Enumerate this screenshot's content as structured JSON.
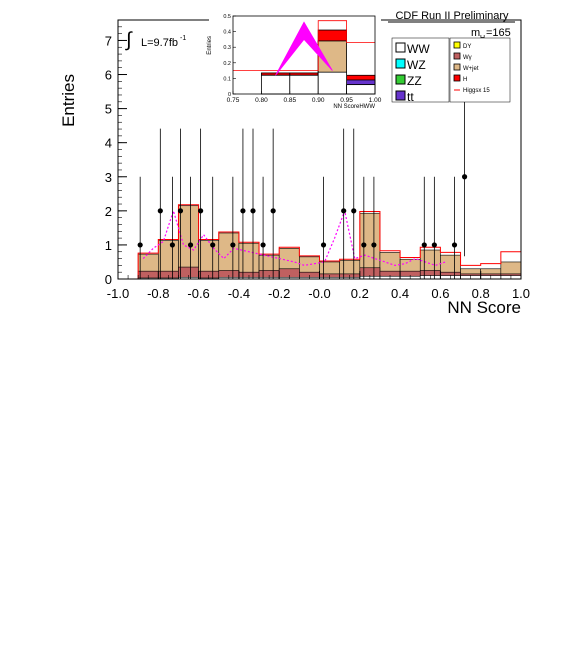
{
  "chart_data": {
    "type": "bar",
    "title": "CDF Run II Preliminary",
    "xlabel": "NN Score",
    "ylabel": "Entries",
    "xlim": [
      -1.0,
      1.0
    ],
    "ylim": [
      0,
      7.6
    ],
    "xticks": [
      "-1.0",
      "-0.8",
      "-0.6",
      "-0.4",
      "-0.2",
      "-0.0",
      "0.2",
      "0.4",
      "0.6",
      "0.8",
      "1.0"
    ],
    "yticks": [
      "0",
      "1",
      "2",
      "3",
      "4",
      "5",
      "6",
      "7"
    ],
    "luminosity_label": "L=9.7fb",
    "luminosity_exponent": "-1",
    "mass_label_main": "m",
    "mass_label_sub": "H",
    "mass_label_value": "=165",
    "bin_edges": [
      -1.0,
      -0.9,
      -0.8,
      -0.7,
      -0.6,
      -0.5,
      -0.4,
      -0.3,
      -0.2,
      -0.1,
      0.0,
      0.1,
      0.2,
      0.3,
      0.4,
      0.5,
      0.6,
      0.7,
      0.8,
      0.9,
      1.0
    ],
    "series": [
      {
        "name": "W+jet",
        "color": "#deb887",
        "values": [
          0.0,
          0.5,
          0.9,
          1.8,
          0.9,
          1.1,
          0.85,
          0.45,
          0.6,
          0.45,
          0.35,
          0.4,
          1.6,
          0.55,
          0.35,
          0.6,
          0.5,
          0.15,
          0.15,
          0.35
        ]
      },
      {
        "name": "Wγ",
        "color": "#c06060",
        "values": [
          0.0,
          0.2,
          0.2,
          0.3,
          0.2,
          0.2,
          0.15,
          0.2,
          0.25,
          0.15,
          0.1,
          0.1,
          0.25,
          0.15,
          0.15,
          0.15,
          0.1,
          0.05,
          0.05,
          0.05
        ]
      },
      {
        "name": "WW",
        "color": "#ffffff",
        "values": [
          0.0,
          0.03,
          0.03,
          0.05,
          0.03,
          0.05,
          0.05,
          0.05,
          0.05,
          0.05,
          0.05,
          0.05,
          0.08,
          0.08,
          0.08,
          0.1,
          0.1,
          0.1,
          0.1,
          0.1
        ]
      }
    ],
    "higgs_line": {
      "name": "Higgsx 15",
      "values": [
        0.0,
        0.03,
        0.03,
        0.03,
        0.03,
        0.03,
        0.03,
        0.03,
        0.03,
        0.03,
        0.03,
        0.03,
        0.05,
        0.05,
        0.05,
        0.08,
        0.08,
        0.1,
        0.15,
        0.3
      ]
    },
    "band": {
      "x": [
        -0.875,
        -0.825,
        -0.775,
        -0.725,
        -0.675,
        -0.625,
        -0.575,
        -0.525,
        -0.475,
        -0.425,
        -0.125,
        -0.075,
        0.025,
        0.075,
        0.125,
        0.175,
        0.225,
        0.275,
        0.325,
        0.375,
        0.425,
        0.475,
        0.525,
        0.575,
        0.625
      ],
      "values": [
        0.6,
        0.9,
        1.1,
        2.0,
        1.0,
        0.85,
        1.3,
        0.9,
        0.6,
        0.9,
        0.5,
        0.4,
        0.5,
        1.2,
        2.0,
        0.6,
        0.7,
        0.6,
        0.5,
        0.4,
        0.45,
        0.6,
        0.5,
        0.4,
        0.5
      ]
    },
    "data_points": {
      "x": [
        -0.89,
        -0.79,
        -0.73,
        -0.69,
        -0.64,
        -0.59,
        -0.53,
        -0.43,
        -0.38,
        -0.33,
        -0.28,
        -0.23,
        0.02,
        0.12,
        0.17,
        0.22,
        0.27,
        0.52,
        0.57,
        0.67,
        0.72
      ],
      "values": [
        1,
        2,
        1,
        2,
        1,
        2,
        1,
        1,
        2,
        2,
        1,
        2,
        1,
        2,
        2,
        1,
        1,
        1,
        1,
        1,
        3
      ]
    },
    "legend": [
      {
        "name": "WW",
        "color": "#ffffff",
        "column": 0
      },
      {
        "name": "WZ",
        "color": "#00ffff",
        "column": 0
      },
      {
        "name": "ZZ",
        "color": "#33cc33",
        "column": 0
      },
      {
        "name": "tt",
        "color": "#6633cc",
        "column": 0
      },
      {
        "name": "DY",
        "color": "#ffff00",
        "column": 1
      },
      {
        "name": "Wγ",
        "color": "#c06060",
        "column": 1
      },
      {
        "name": "W+jet",
        "color": "#deb887",
        "column": 1
      },
      {
        "name": "H",
        "color": "#ff0000",
        "column": 1
      },
      {
        "name": "Higgsx 15",
        "color": "#ff0000",
        "column": 1,
        "line": true
      }
    ],
    "legend_placement": "top-right",
    "inset": {
      "xlabel": "NN ScoreHWW",
      "ylabel": "Entries",
      "xlim": [
        0.75,
        1.0
      ],
      "ylim": [
        0,
        0.5
      ],
      "xticks": [
        "0.75",
        "0.80",
        "0.85",
        "0.90",
        "0.95",
        "1.00"
      ],
      "yticks": [
        "0",
        "0.1",
        "0.2",
        "0.3",
        "0.4",
        "0.5"
      ],
      "bin_edges": [
        0.75,
        0.8,
        0.85,
        0.9,
        0.95,
        1.0
      ],
      "stacks": [
        {
          "name": "WW",
          "color": "#ffffff",
          "values": [
            0.0,
            0.12,
            0.12,
            0.14,
            0.06
          ]
        },
        {
          "name": "W+jet",
          "color": "#deb887",
          "values": [
            0.0,
            0.0,
            0.0,
            0.2,
            0.0
          ]
        },
        {
          "name": "tt",
          "color": "#6633cc",
          "values": [
            0.0,
            0.0,
            0.0,
            0.0,
            0.03
          ]
        },
        {
          "name": "H",
          "color": "#ff0000",
          "values": [
            0.0,
            0.015,
            0.015,
            0.07,
            0.03
          ]
        }
      ],
      "higgs_line": [
        0.15,
        0.15,
        0.15,
        0.47,
        0.33
      ],
      "band_x": [
        0.825,
        0.875,
        0.925
      ],
      "band_low": [
        0.12,
        0.35,
        0.15
      ],
      "band_high": [
        0.12,
        0.46,
        0.15
      ]
    },
    "colors": {
      "band": "#ff00ff",
      "data": "#000000"
    }
  }
}
